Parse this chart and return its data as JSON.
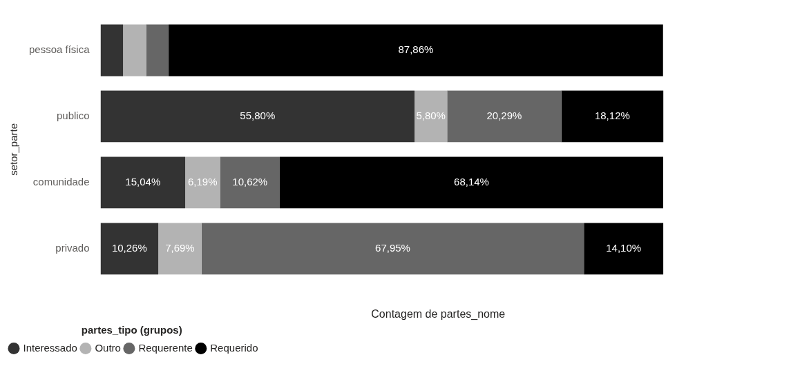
{
  "chart_data": {
    "type": "bar",
    "orientation": "horizontal",
    "stacked": true,
    "ylabel": "setor_parte",
    "xlabel": "Contagem de partes_nome",
    "legend_title": "partes_tipo (grupos)",
    "legend": "bottom left",
    "tick_labels": "y",
    "grid": false,
    "categories": [
      "pessoa física",
      "publico",
      "comunidade",
      "privado"
    ],
    "series": [
      {
        "name": "Interessado",
        "color": "#333333",
        "values": [
          4.0,
          55.8,
          15.04,
          10.26
        ],
        "value_labels": [
          null,
          "55,80%",
          "15,04%",
          "10,26%"
        ]
      },
      {
        "name": "Outro",
        "color": "#b3b3b3",
        "values": [
          4.1,
          5.8,
          6.19,
          7.69
        ],
        "value_labels": [
          null,
          "5,80%",
          "6,19%",
          "7,69%"
        ]
      },
      {
        "name": "Requerente",
        "color": "#666666",
        "values": [
          4.0,
          20.29,
          10.62,
          67.95
        ],
        "value_labels": [
          null,
          "20,29%",
          "10,62%",
          "67,95%"
        ]
      },
      {
        "name": "Requerido",
        "color": "#000000",
        "values": [
          87.86,
          18.12,
          68.14,
          14.1
        ],
        "value_labels": [
          "87,86%",
          "18,12%",
          "68,14%",
          "14,10%"
        ]
      }
    ]
  }
}
